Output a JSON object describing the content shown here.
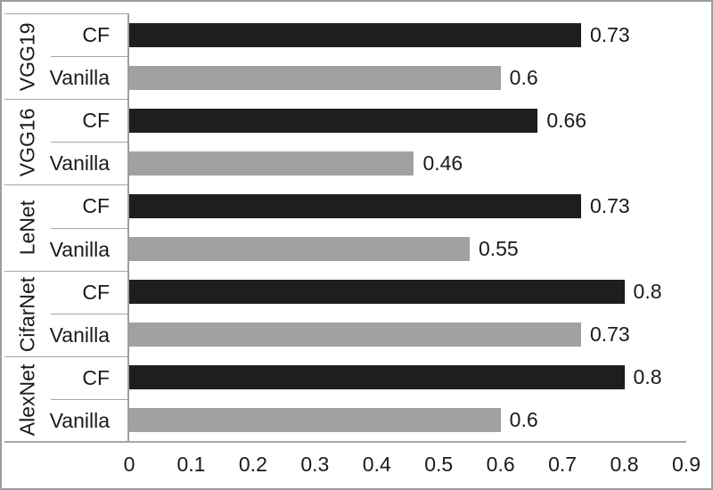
{
  "chart_data": {
    "type": "bar",
    "orientation": "horizontal",
    "title": "",
    "xlabel": "",
    "ylabel": "",
    "grid": false,
    "legend_position": "none",
    "xlim": [
      0,
      0.9
    ],
    "x_ticks": [
      "0",
      "0.1",
      "0.2",
      "0.3",
      "0.4",
      "0.5",
      "0.6",
      "0.7",
      "0.8",
      "0.9"
    ],
    "series_labels": [
      "CF",
      "Vanilla"
    ],
    "colors": {
      "CF": "#1e1e1e",
      "Vanilla": "#a1a1a1"
    },
    "groups": [
      {
        "name": "VGG19",
        "series": [
          "CF",
          "Vanilla"
        ],
        "values": [
          0.73,
          0.6
        ]
      },
      {
        "name": "VGG16",
        "series": [
          "CF",
          "Vanilla"
        ],
        "values": [
          0.66,
          0.46
        ]
      },
      {
        "name": "LeNet",
        "series": [
          "CF",
          "Vanilla"
        ],
        "values": [
          0.73,
          0.55
        ]
      },
      {
        "name": "CifarNet",
        "series": [
          "CF",
          "Vanilla"
        ],
        "values": [
          0.8,
          0.73
        ]
      },
      {
        "name": "AlexNet",
        "series": [
          "CF",
          "Vanilla"
        ],
        "values": [
          0.8,
          0.6
        ]
      }
    ],
    "rows": [
      {
        "group": "VGG19",
        "series": "CF",
        "value": 0.73,
        "value_label": "0.73"
      },
      {
        "group": "VGG19",
        "series": "Vanilla",
        "value": 0.6,
        "value_label": "0.6"
      },
      {
        "group": "VGG16",
        "series": "CF",
        "value": 0.66,
        "value_label": "0.66"
      },
      {
        "group": "VGG16",
        "series": "Vanilla",
        "value": 0.46,
        "value_label": "0.46"
      },
      {
        "group": "LeNet",
        "series": "CF",
        "value": 0.73,
        "value_label": "0.73"
      },
      {
        "group": "LeNet",
        "series": "Vanilla",
        "value": 0.55,
        "value_label": "0.55"
      },
      {
        "group": "CifarNet",
        "series": "CF",
        "value": 0.8,
        "value_label": "0.8"
      },
      {
        "group": "CifarNet",
        "series": "Vanilla",
        "value": 0.73,
        "value_label": "0.73"
      },
      {
        "group": "AlexNet",
        "series": "CF",
        "value": 0.8,
        "value_label": "0.8"
      },
      {
        "group": "AlexNet",
        "series": "Vanilla",
        "value": 0.6,
        "value_label": "0.6"
      }
    ]
  }
}
